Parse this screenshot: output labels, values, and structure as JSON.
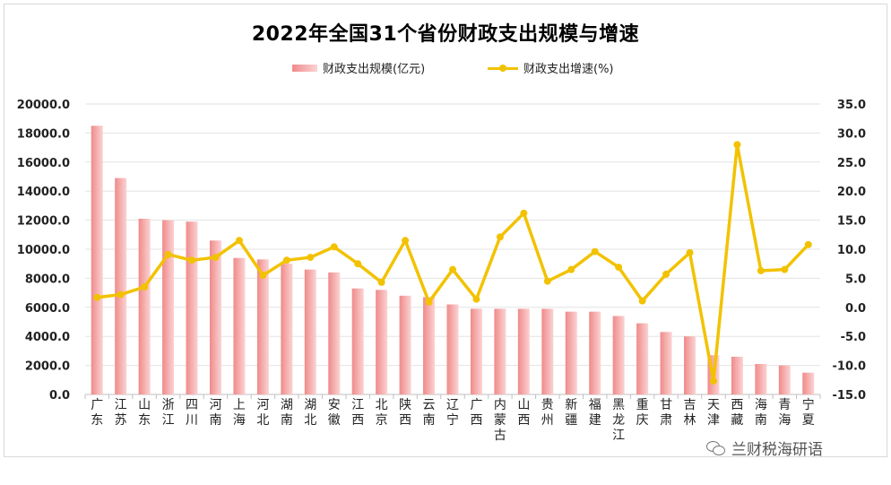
{
  "colors": {
    "bar_dark": "#f08a8a",
    "bar_light": "#fbd3d3",
    "line": "#f2c200",
    "grid": "#e3e3e3"
  },
  "watermark": {
    "icon": "wechat-icon",
    "text": "兰财税海研语"
  },
  "chart_data": {
    "type": "bar",
    "title": "2022年全国31个省份财政支出规模与增速",
    "legend_position": "top",
    "grid": true,
    "categories": [
      "广东",
      "江苏",
      "山东",
      "浙江",
      "四川",
      "河南",
      "上海",
      "河北",
      "湖南",
      "湖北",
      "安徽",
      "江西",
      "北京",
      "陕西",
      "云南",
      "辽宁",
      "广西",
      "内蒙古",
      "山西",
      "贵州",
      "新疆",
      "福建",
      "黑龙江",
      "重庆",
      "甘肃",
      "吉林",
      "天津",
      "西藏",
      "海南",
      "青海",
      "宁夏"
    ],
    "series": [
      {
        "name": "财政支出规模(亿元)",
        "type": "bar",
        "axis": "left",
        "values": [
          18500,
          14900,
          12100,
          12000,
          11900,
          10600,
          9400,
          9300,
          9000,
          8600,
          8400,
          7300,
          7200,
          6800,
          6700,
          6200,
          5900,
          5900,
          5900,
          5900,
          5700,
          5700,
          5400,
          4900,
          4300,
          4000,
          2700,
          2600,
          2100,
          2000,
          1500
        ]
      },
      {
        "name": "财政支出增速(%)",
        "type": "line",
        "axis": "right",
        "values": [
          1.7,
          2.2,
          3.5,
          9.1,
          8.1,
          8.6,
          11.5,
          5.5,
          8.1,
          8.6,
          10.4,
          7.5,
          4.3,
          11.5,
          0.9,
          6.5,
          1.4,
          12.1,
          16.2,
          4.5,
          6.5,
          9.6,
          6.9,
          1.1,
          5.7,
          9.4,
          -12.7,
          28.0,
          6.3,
          6.5,
          10.8
        ]
      }
    ],
    "y_left": {
      "lim": [
        0,
        20000
      ],
      "ticks": [
        "20000.0",
        "18000.0",
        "16000.0",
        "14000.0",
        "12000.0",
        "10000.0",
        "8000.0",
        "6000.0",
        "4000.0",
        "2000.0",
        "0.0"
      ]
    },
    "y_right": {
      "lim": [
        -15,
        35
      ],
      "ticks": [
        "35.0",
        "30.0",
        "25.0",
        "20.0",
        "15.0",
        "10.0",
        "5.0",
        "0.0",
        "-5.0",
        "-10.0",
        "-15.0"
      ]
    }
  }
}
